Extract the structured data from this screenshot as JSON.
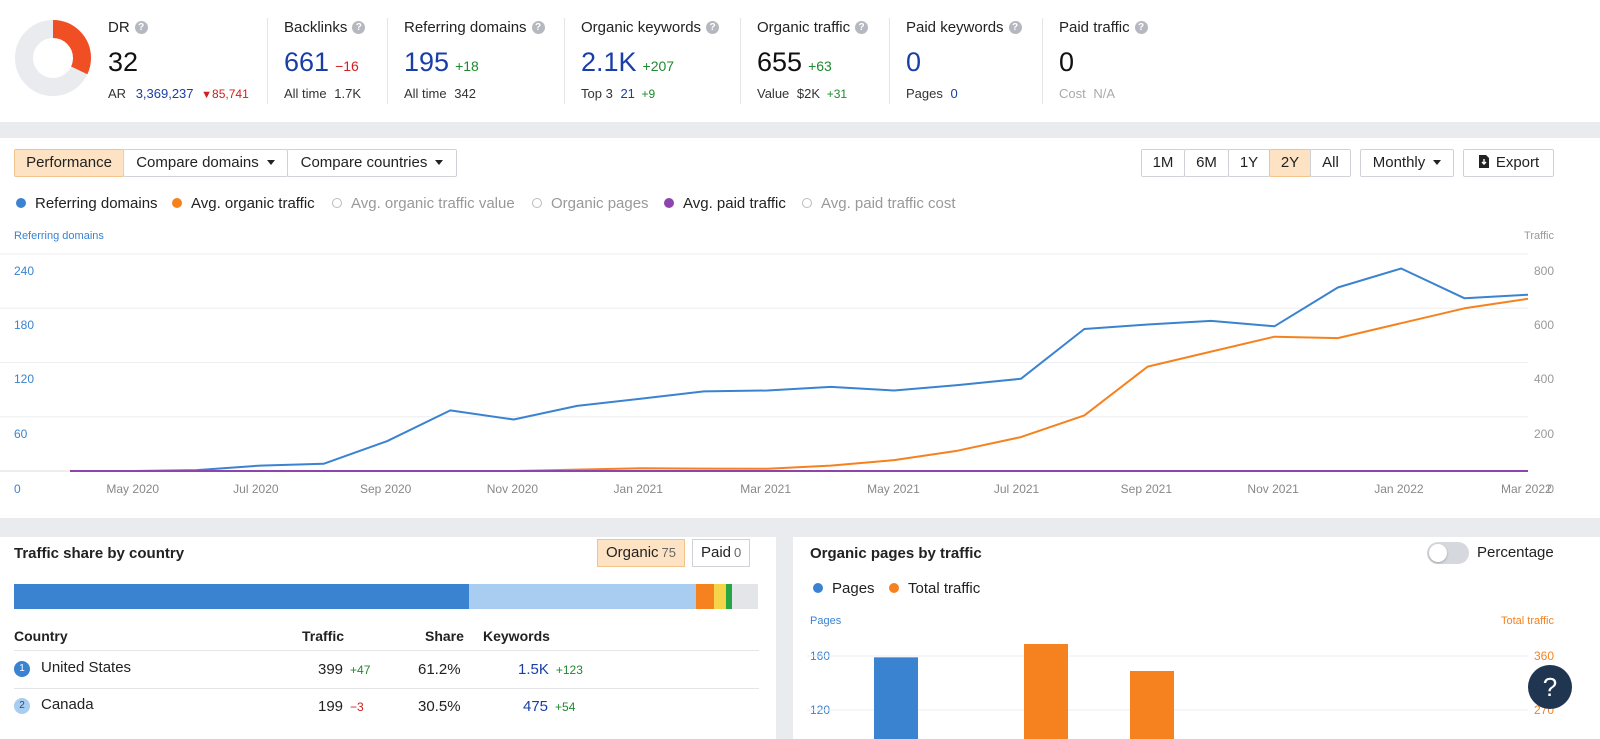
{
  "metrics": {
    "dr": {
      "label": "DR",
      "value": "32",
      "ar_label": "AR",
      "ar_value": "3,369,237",
      "ar_delta": "85,741"
    },
    "backlinks": {
      "label": "Backlinks",
      "value": "661",
      "delta": "−16",
      "sub_label": "All time",
      "sub_value": "1.7K"
    },
    "referring_domains": {
      "label": "Referring domains",
      "value": "195",
      "delta": "+18",
      "sub_label": "All time",
      "sub_value": "342"
    },
    "organic_keywords": {
      "label": "Organic keywords",
      "value": "2.1K",
      "delta": "+207",
      "sub_label": "Top 3",
      "sub_value": "21",
      "sub_delta": "+9"
    },
    "organic_traffic": {
      "label": "Organic traffic",
      "value": "655",
      "delta": "+63",
      "sub_label": "Value",
      "sub_value": "$2K",
      "sub_delta": "+31"
    },
    "paid_keywords": {
      "label": "Paid keywords",
      "value": "0",
      "sub_label": "Pages",
      "sub_value": "0"
    },
    "paid_traffic": {
      "label": "Paid traffic",
      "value": "0",
      "sub_label": "Cost",
      "sub_value": "N/A"
    }
  },
  "toolbar": {
    "performance": "Performance",
    "compare_domains": "Compare domains",
    "compare_countries": "Compare countries",
    "ranges": [
      "1M",
      "6M",
      "1Y",
      "2Y",
      "All"
    ],
    "active_range": "2Y",
    "interval": "Monthly",
    "export": "Export"
  },
  "legend": [
    {
      "label": "Referring domains",
      "color": "#3a83d0",
      "on": true
    },
    {
      "label": "Avg. organic traffic",
      "color": "#f5821f",
      "on": true
    },
    {
      "label": "Avg. organic traffic value",
      "color": "#bbbbbb",
      "on": false
    },
    {
      "label": "Organic pages",
      "color": "#bbbbbb",
      "on": false
    },
    {
      "label": "Avg. paid traffic",
      "color": "#8e44ad",
      "on": true
    },
    {
      "label": "Avg. paid traffic cost",
      "color": "#bbbbbb",
      "on": false
    }
  ],
  "chart_data": [
    {
      "type": "line",
      "left_axis_title": "Referring domains",
      "right_axis_title": "Traffic",
      "left_ticks": [
        "240",
        "180",
        "120",
        "60",
        "0"
      ],
      "right_ticks": [
        "800",
        "600",
        "400",
        "200",
        "0"
      ],
      "ylim_left": [
        0,
        240
      ],
      "ylim_right": [
        0,
        800
      ],
      "x_tick_labels": [
        "May 2020",
        "Jul 2020",
        "Sep 2020",
        "Nov 2020",
        "Jan 2021",
        "Mar 2021",
        "May 2021",
        "Jul 2021",
        "Sep 2021",
        "Nov 2021",
        "Jan 2022",
        "Mar 2022"
      ],
      "x": [
        "Apr 2020",
        "May 2020",
        "Jun 2020",
        "Jul 2020",
        "Aug 2020",
        "Sep 2020",
        "Oct 2020",
        "Nov 2020",
        "Dec 2020",
        "Jan 2021",
        "Feb 2021",
        "Mar 2021",
        "Apr 2021",
        "May 2021",
        "Jun 2021",
        "Jul 2021",
        "Aug 2021",
        "Sep 2021",
        "Oct 2021",
        "Nov 2021",
        "Dec 2021",
        "Jan 2022",
        "Feb 2022",
        "Mar 2022"
      ],
      "series": [
        {
          "name": "Referring domains",
          "axis": "left",
          "color": "#3a83d0",
          "values": [
            0,
            0,
            1,
            6,
            8,
            33,
            67,
            57,
            72,
            80,
            88,
            89,
            93,
            89,
            95,
            102,
            157,
            162,
            166,
            160,
            203,
            224,
            191,
            195
          ]
        },
        {
          "name": "Avg. organic traffic",
          "axis": "right",
          "color": "#f5821f",
          "values": [
            0,
            0,
            0,
            0,
            0,
            0,
            0,
            0,
            5,
            10,
            9,
            8,
            20,
            40,
            75,
            125,
            205,
            385,
            440,
            495,
            490,
            545,
            600,
            635
          ]
        },
        {
          "name": "Avg. paid traffic",
          "axis": "right",
          "color": "#8e44ad",
          "values": [
            0,
            0,
            0,
            0,
            0,
            0,
            0,
            0,
            0,
            0,
            0,
            0,
            0,
            0,
            0,
            0,
            0,
            0,
            0,
            0,
            0,
            0,
            0,
            0
          ]
        }
      ]
    },
    {
      "type": "bar",
      "left_axis_title": "Pages",
      "right_axis_title": "Total traffic",
      "left_ticks": [
        "160",
        "120"
      ],
      "right_ticks": [
        "360",
        "270"
      ],
      "series": [
        {
          "name": "Pages",
          "color": "#3a83d0",
          "values": [
            159
          ]
        },
        {
          "name": "Total traffic",
          "color": "#f5821f",
          "values": [
            380,
            335
          ]
        }
      ]
    }
  ],
  "traffic_share": {
    "title": "Traffic share by country",
    "organic_label": "Organic",
    "organic_count": "75",
    "paid_label": "Paid",
    "paid_count": "0",
    "bar_segments": [
      {
        "share": 61.2,
        "color": "#3a83d0"
      },
      {
        "share": 30.5,
        "color": "#a8cdf0"
      },
      {
        "share": 2.4,
        "color": "#f5821f"
      },
      {
        "share": 1.6,
        "color": "#f5d44a"
      },
      {
        "share": 0.8,
        "color": "#27a744"
      },
      {
        "share": 3.5,
        "color": "#e3e5e8"
      }
    ],
    "columns": {
      "country": "Country",
      "traffic": "Traffic",
      "share": "Share",
      "keywords": "Keywords"
    },
    "rows": [
      {
        "rank": "1",
        "country": "United States",
        "traffic": "399",
        "traffic_delta": "+47",
        "share": "61.2%",
        "keywords": "1.5K",
        "keywords_delta": "+123",
        "rank_color": "#3a83d0"
      },
      {
        "rank": "2",
        "country": "Canada",
        "traffic": "199",
        "traffic_delta": "−3",
        "share": "30.5%",
        "keywords": "475",
        "keywords_delta": "+54",
        "rank_color": "#a8cdf0"
      }
    ]
  },
  "organic_pages": {
    "title": "Organic pages by traffic",
    "percentage_label": "Percentage",
    "legend_pages": "Pages",
    "legend_traffic": "Total traffic"
  },
  "help_fab": "?"
}
